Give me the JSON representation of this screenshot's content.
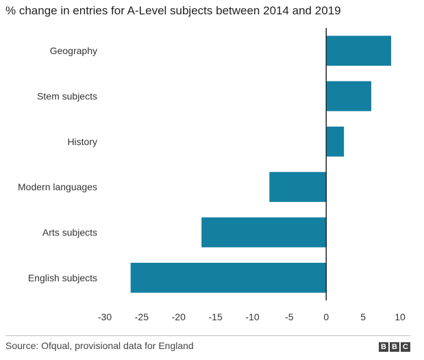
{
  "chart_data": {
    "type": "bar",
    "orientation": "horizontal",
    "title": "% change in entries for A-Level subjects between 2014 and 2019",
    "xlabel": "",
    "ylabel": "",
    "categories": [
      "Geography",
      "Stem subjects",
      "History",
      "Modern languages",
      "Arts subjects",
      "English subjects"
    ],
    "values": [
      8.8,
      6.1,
      2.4,
      -7.7,
      -16.9,
      -26.5
    ],
    "xlim": [
      -30,
      10
    ],
    "xticks": [
      "-30",
      "-25",
      "-20",
      "-15",
      "-10",
      "-5",
      "0",
      "5",
      "10"
    ],
    "grid": false,
    "bar_color": "#1380A1",
    "zero_line_color": "#222222"
  },
  "footer": {
    "source": "Source: Ofqual, provisional data for England",
    "logo": [
      "B",
      "B",
      "C"
    ]
  }
}
